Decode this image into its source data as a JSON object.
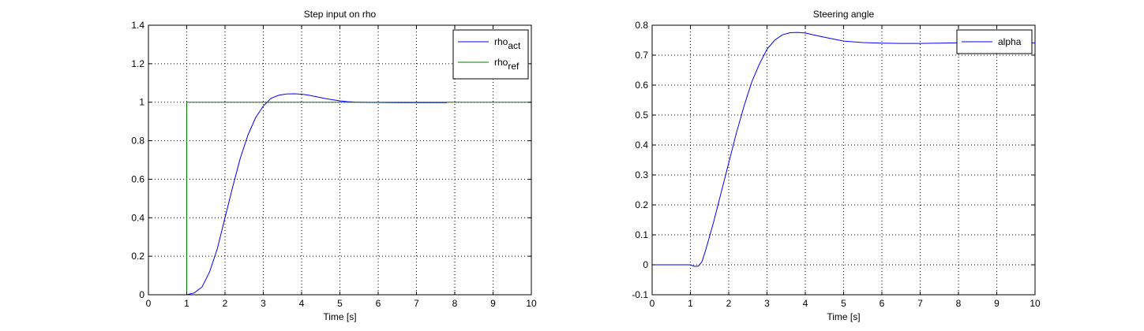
{
  "chart_data": [
    {
      "type": "line",
      "title": "Step input on rho",
      "xlabel": "Time [s]",
      "ylabel": "",
      "xlim": [
        0,
        10
      ],
      "ylim": [
        0,
        1.4
      ],
      "xticks": [
        "0",
        "1",
        "2",
        "3",
        "4",
        "5",
        "6",
        "7",
        "8",
        "9",
        "10"
      ],
      "yticks": [
        "0",
        "0.2",
        "0.4",
        "0.6",
        "0.8",
        "1",
        "1.2",
        "1.4"
      ],
      "grid": true,
      "legend_position": "top-right",
      "series": [
        {
          "name": "rho_act",
          "legend_base": "rho",
          "legend_sub": "act",
          "color": "#0000ff",
          "x": [
            1.0,
            1.2,
            1.4,
            1.6,
            1.8,
            2.0,
            2.2,
            2.4,
            2.6,
            2.8,
            3.0,
            3.2,
            3.4,
            3.6,
            3.8,
            4.0,
            4.2,
            4.4,
            4.6,
            4.8,
            5.0,
            5.2,
            5.4,
            5.6,
            5.8,
            6.0,
            6.5,
            7.0,
            7.5,
            7.8
          ],
          "y": [
            0.0,
            0.01,
            0.04,
            0.12,
            0.24,
            0.4,
            0.56,
            0.71,
            0.83,
            0.92,
            0.98,
            1.02,
            1.036,
            1.043,
            1.044,
            1.042,
            1.036,
            1.028,
            1.02,
            1.013,
            1.007,
            1.003,
            1.001,
            1.0,
            0.999,
            0.999,
            0.998,
            0.998,
            0.998,
            0.998
          ]
        },
        {
          "name": "rho_ref",
          "legend_base": "rho",
          "legend_sub": "ref",
          "color": "#007f00",
          "x": [
            0,
            1,
            1,
            10
          ],
          "y": [
            0,
            0,
            1,
            1
          ]
        }
      ]
    },
    {
      "type": "line",
      "title": "Steering angle",
      "xlabel": "Time [s]",
      "ylabel": "",
      "xlim": [
        0,
        10
      ],
      "ylim": [
        -0.1,
        0.8
      ],
      "xticks": [
        "0",
        "1",
        "2",
        "3",
        "4",
        "5",
        "6",
        "7",
        "8",
        "9",
        "10"
      ],
      "yticks": [
        "-0.1",
        "0",
        "0.1",
        "0.2",
        "0.3",
        "0.4",
        "0.5",
        "0.6",
        "0.7",
        "0.8"
      ],
      "grid": true,
      "legend_position": "top-right",
      "series": [
        {
          "name": "alpha",
          "legend_base": "alpha",
          "legend_sub": "",
          "color": "#0000ff",
          "x": [
            0,
            1.0,
            1.1,
            1.2,
            1.3,
            1.4,
            1.6,
            1.8,
            2.0,
            2.2,
            2.4,
            2.6,
            2.8,
            3.0,
            3.2,
            3.4,
            3.6,
            3.8,
            4.0,
            4.2,
            4.5,
            5.0,
            5.5,
            6.0,
            6.5,
            7.0,
            7.5,
            8.0,
            9.0,
            10.0
          ],
          "y": [
            0,
            0,
            -0.005,
            -0.005,
            0.01,
            0.05,
            0.14,
            0.24,
            0.34,
            0.44,
            0.53,
            0.61,
            0.67,
            0.72,
            0.75,
            0.768,
            0.775,
            0.776,
            0.774,
            0.768,
            0.76,
            0.747,
            0.742,
            0.74,
            0.739,
            0.739,
            0.74,
            0.741,
            0.741,
            0.741
          ]
        }
      ]
    }
  ]
}
